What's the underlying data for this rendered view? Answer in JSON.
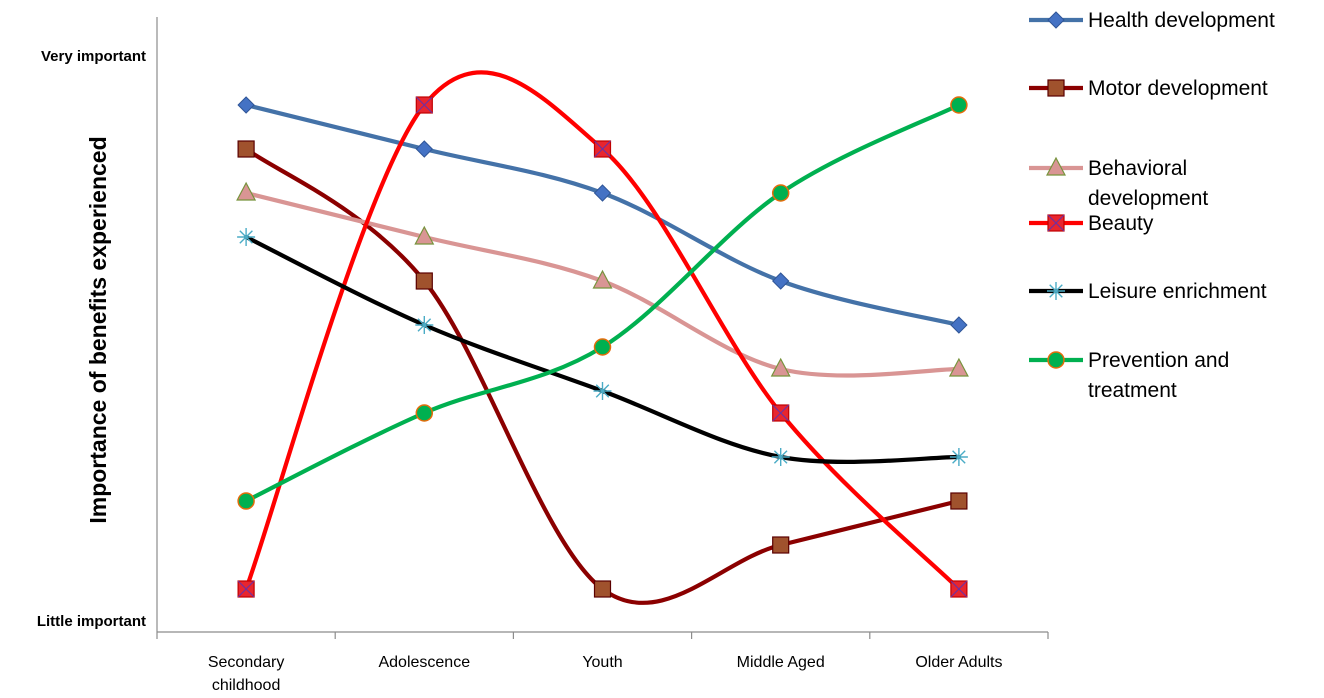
{
  "chart_data": {
    "type": "line",
    "ylabel": "Importance of benefits experienced",
    "xlabel": "",
    "ytick_labels": {
      "top": "Very important",
      "bottom": "Little important"
    },
    "ylim": [
      0,
      12
    ],
    "grid": false,
    "legend_position": "right",
    "categories": [
      "Secondary childhood",
      "Adolescence",
      "Youth",
      "Middle Aged",
      "Older Adults"
    ],
    "series": [
      {
        "name": "Health development",
        "values": [
          11,
          10,
          9,
          7,
          6
        ],
        "color": "#4472A8",
        "marker": "diamond",
        "marker_color": "#4472C4"
      },
      {
        "name": "Motor development",
        "values": [
          10,
          7,
          0,
          1,
          2
        ],
        "color": "#8B0000",
        "marker": "square",
        "marker_color": "#A0522D"
      },
      {
        "name": "Behavioral development",
        "values": [
          9,
          8,
          7,
          5,
          5
        ],
        "color": "#D99594",
        "marker": "triangle",
        "marker_color": "#D99594"
      },
      {
        "name": "Beauty",
        "values": [
          0,
          11,
          10,
          4,
          0
        ],
        "color": "#FF0000",
        "marker": "square-x",
        "marker_color": "#E8252E"
      },
      {
        "name": "Leisure enrichment",
        "values": [
          8,
          6,
          4.5,
          3,
          3
        ],
        "color": "#000000",
        "marker": "star",
        "marker_color": "#4BACC6"
      },
      {
        "name": "Prevention and treatment",
        "values": [
          2,
          4,
          5.5,
          9,
          11
        ],
        "color": "#00B050",
        "marker": "circle",
        "marker_color": "#00B050"
      }
    ]
  }
}
